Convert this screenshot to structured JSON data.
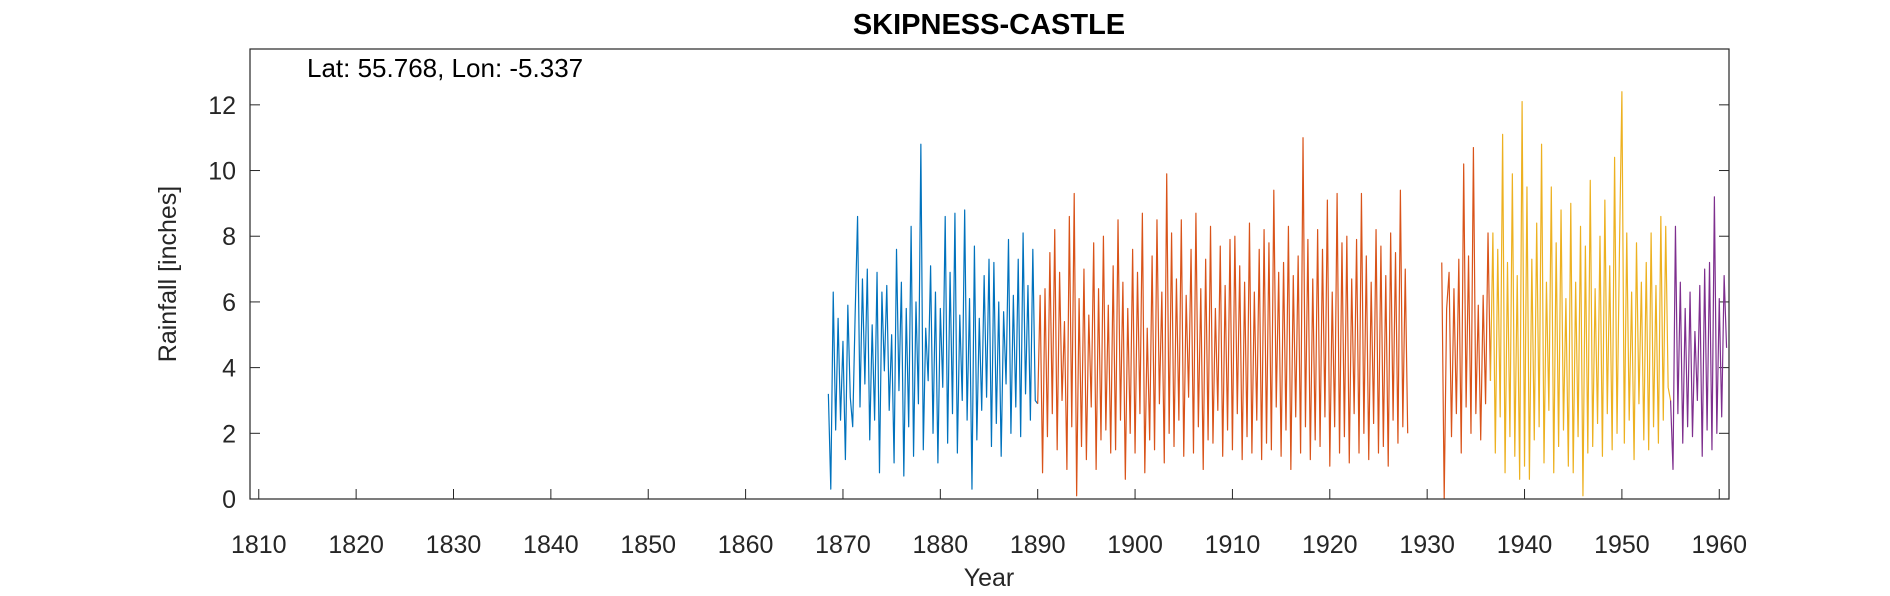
{
  "chart_data": {
    "type": "line",
    "title": "SKIPNESS-CASTLE",
    "annotation": "Lat: 55.768, Lon: -5.337",
    "x_label": "Year",
    "y_label": "Rainfall [inches]",
    "xlim": [
      1809.1,
      1961
    ],
    "xticks": [
      1810,
      1820,
      1830,
      1840,
      1850,
      1860,
      1870,
      1880,
      1890,
      1900,
      1910,
      1920,
      1930,
      1940,
      1950,
      1960
    ],
    "ylim": [
      0,
      13.7
    ],
    "yticks": [
      0,
      2,
      4,
      6,
      8,
      10,
      12
    ],
    "series": [
      {
        "color": "#0072BD",
        "x": [
          1868.5,
          1868.75,
          1869,
          1869.25,
          1869.5,
          1869.75,
          1870,
          1870.25,
          1870.5,
          1870.75,
          1871,
          1871.25,
          1871.5,
          1871.75,
          1872,
          1872.25,
          1872.5,
          1872.75,
          1873,
          1873.25,
          1873.5,
          1873.75,
          1874,
          1874.25,
          1874.5,
          1874.75,
          1875,
          1875.25,
          1875.5,
          1875.75,
          1876,
          1876.25,
          1876.5,
          1876.75,
          1877,
          1877.25,
          1877.5,
          1877.75,
          1878,
          1878.25,
          1878.5,
          1878.75,
          1879,
          1879.25,
          1879.5,
          1879.75,
          1880,
          1880.25,
          1880.5,
          1880.75,
          1881,
          1881.25,
          1881.5,
          1881.75,
          1882,
          1882.25,
          1882.5,
          1882.75,
          1883,
          1883.25,
          1883.5,
          1883.75,
          1884,
          1884.25,
          1884.5,
          1884.75,
          1885,
          1885.25,
          1885.5,
          1885.75,
          1886,
          1886.25,
          1886.5,
          1886.75,
          1887,
          1887.25,
          1887.5,
          1887.75,
          1888,
          1888.25,
          1888.5,
          1888.75,
          1889,
          1889.25,
          1889.5,
          1889.75,
          1890
        ],
        "values": [
          3.2,
          0.3,
          6.3,
          2.1,
          5.5,
          2.4,
          4.8,
          1.2,
          5.9,
          3.1,
          2.2,
          5.6,
          8.6,
          2.8,
          6.7,
          3.5,
          7.0,
          1.8,
          5.3,
          2.4,
          6.9,
          0.8,
          6.3,
          3.9,
          6.5,
          2.7,
          5.0,
          1.1,
          7.6,
          3.3,
          6.6,
          0.7,
          5.8,
          2.2,
          8.3,
          1.3,
          6.0,
          2.9,
          10.8,
          1.5,
          5.2,
          3.6,
          7.1,
          2.0,
          6.3,
          1.1,
          5.8,
          3.4,
          8.6,
          1.7,
          6.9,
          2.6,
          8.7,
          1.4,
          5.6,
          3.0,
          8.8,
          2.4,
          6.1,
          0.3,
          7.7,
          1.8,
          5.5,
          2.7,
          6.8,
          3.1,
          7.3,
          1.6,
          7.2,
          2.3,
          6.0,
          1.3,
          5.7,
          3.5,
          7.9,
          2.0,
          6.2,
          2.8,
          7.3,
          1.9,
          8.1,
          3.2,
          6.5,
          2.4,
          7.6,
          3.0,
          2.9
        ]
      },
      {
        "color": "#D95319",
        "x": [
          1890,
          1890.25,
          1890.5,
          1890.75,
          1891,
          1891.25,
          1891.5,
          1891.75,
          1892,
          1892.25,
          1892.5,
          1892.75,
          1893,
          1893.25,
          1893.5,
          1893.75,
          1894,
          1894.25,
          1894.5,
          1894.75,
          1895,
          1895.25,
          1895.5,
          1895.75,
          1896,
          1896.25,
          1896.5,
          1896.75,
          1897,
          1897.25,
          1897.5,
          1897.75,
          1898,
          1898.25,
          1898.5,
          1898.75,
          1899,
          1899.25,
          1899.5,
          1899.75,
          1900,
          1900.25,
          1900.5,
          1900.75,
          1901,
          1901.25,
          1901.5,
          1901.75,
          1902,
          1902.25,
          1902.5,
          1902.75,
          1903,
          1903.25,
          1903.5,
          1903.75,
          1904,
          1904.25,
          1904.5,
          1904.75,
          1905,
          1905.25,
          1905.5,
          1905.75,
          1906,
          1906.25,
          1906.5,
          1906.75,
          1907,
          1907.25,
          1907.5,
          1907.75,
          1908,
          1908.25,
          1908.5,
          1908.75,
          1909,
          1909.25,
          1909.5,
          1909.75,
          1910,
          1910.25,
          1910.5,
          1910.75,
          1911,
          1911.25,
          1911.5,
          1911.75,
          1912,
          1912.25,
          1912.5,
          1912.75,
          1913,
          1913.25,
          1913.5,
          1913.75,
          1914,
          1914.25,
          1914.5,
          1914.75,
          1915,
          1915.25,
          1915.5,
          1915.75,
          1916,
          1916.25,
          1916.5,
          1916.75,
          1917,
          1917.25,
          1917.5,
          1917.75,
          1918,
          1918.25,
          1918.5,
          1918.75,
          1919,
          1919.25,
          1919.5,
          1919.75,
          1920,
          1920.25,
          1920.5,
          1920.75,
          1921,
          1921.25,
          1921.5,
          1921.75,
          1922,
          1922.25,
          1922.5,
          1922.75,
          1923,
          1923.25,
          1923.5,
          1923.75,
          1924,
          1924.25,
          1924.5,
          1924.75,
          1925,
          1925.25,
          1925.5,
          1925.75,
          1926,
          1926.25,
          1926.5,
          1926.75,
          1927,
          1927.25,
          1927.5,
          1927.75,
          1928,
          1930,
          1931.5,
          1931.75,
          1932,
          1932.25,
          1932.5,
          1932.75,
          1933,
          1933.25,
          1933.5,
          1933.75,
          1934,
          1934.25,
          1934.5,
          1934.75,
          1935,
          1935.25,
          1935.5,
          1935.75,
          1936,
          1936.25,
          1936.5
        ],
        "values": [
          2.9,
          6.2,
          0.8,
          6.4,
          1.9,
          7.5,
          2.6,
          8.2,
          1.5,
          6.9,
          3.0,
          5.4,
          0.9,
          8.6,
          2.2,
          9.3,
          0.1,
          6.1,
          1.6,
          7.0,
          1.2,
          5.6,
          2.8,
          7.8,
          0.9,
          6.4,
          1.8,
          8.0,
          2.1,
          5.9,
          1.4,
          7.1,
          1.5,
          8.5,
          2.4,
          6.6,
          0.6,
          5.8,
          2.0,
          7.6,
          1.4,
          6.9,
          2.6,
          8.7,
          0.8,
          5.2,
          1.8,
          7.4,
          1.5,
          8.5,
          2.9,
          6.3,
          1.1,
          9.9,
          2.0,
          8.1,
          1.6,
          6.7,
          2.4,
          8.5,
          1.3,
          6.2,
          3.1,
          7.6,
          1.4,
          8.7,
          2.2,
          6.4,
          0.9,
          7.3,
          1.8,
          8.3,
          1.7,
          5.8,
          2.7,
          7.7,
          1.3,
          6.5,
          2.1,
          7.9,
          1.5,
          8.0,
          2.6,
          7.1,
          1.2,
          6.6,
          1.9,
          8.4,
          1.4,
          6.3,
          2.4,
          7.6,
          1.2,
          8.2,
          1.7,
          7.8,
          1.5,
          9.4,
          2.8,
          6.9,
          1.3,
          7.2,
          2.1,
          8.3,
          0.9,
          6.8,
          2.5,
          7.4,
          1.4,
          11.0,
          2.2,
          7.9,
          1.2,
          6.7,
          1.8,
          8.2,
          1.6,
          7.6,
          2.5,
          9.1,
          1.0,
          6.3,
          2.2,
          9.3,
          1.4,
          7.8,
          1.9,
          8.0,
          1.1,
          6.7,
          2.6,
          7.9,
          1.4,
          9.3,
          2.0,
          7.4,
          1.2,
          6.6,
          2.3,
          8.2,
          1.4,
          7.7,
          1.6,
          6.8,
          1.0,
          8.1,
          2.4,
          7.5,
          1.7,
          9.4,
          2.2,
          7.0,
          2.0,
          null,
          7.2,
          0.0,
          5.8,
          6.9,
          1.9,
          6.4,
          2.6,
          7.3,
          1.4,
          10.2,
          2.8,
          7.4,
          2.0,
          10.7,
          2.6,
          5.9,
          1.8,
          6.2,
          2.9,
          8.1,
          3.6
        ]
      },
      {
        "color": "#EDB120",
        "x": [
          1936.5,
          1936.75,
          1937,
          1937.25,
          1937.5,
          1937.75,
          1938,
          1938.25,
          1938.5,
          1938.75,
          1939,
          1939.25,
          1939.5,
          1939.75,
          1940,
          1940.25,
          1940.5,
          1940.75,
          1941,
          1941.25,
          1941.5,
          1941.75,
          1942,
          1942.25,
          1942.5,
          1942.75,
          1943,
          1943.25,
          1943.5,
          1943.75,
          1944,
          1944.25,
          1944.5,
          1944.75,
          1945,
          1945.25,
          1945.5,
          1945.75,
          1946,
          1946.25,
          1946.5,
          1946.75,
          1947,
          1947.25,
          1947.5,
          1947.75,
          1948,
          1948.25,
          1948.5,
          1948.75,
          1949,
          1949.25,
          1949.5,
          1949.75,
          1950,
          1950.25,
          1950.5,
          1950.75,
          1951,
          1951.25,
          1951.5,
          1951.75,
          1952,
          1952.25,
          1952.5,
          1952.75,
          1953,
          1953.25,
          1953.5,
          1953.75,
          1954,
          1954.25,
          1954.5,
          1954.75,
          1955
        ],
        "values": [
          3.6,
          8.1,
          1.4,
          7.6,
          2.5,
          11.1,
          0.8,
          7.2,
          1.9,
          9.9,
          1.3,
          6.8,
          0.6,
          12.1,
          1.0,
          9.5,
          0.6,
          7.3,
          1.8,
          8.4,
          2.2,
          10.8,
          1.1,
          6.6,
          2.7,
          9.5,
          0.8,
          7.8,
          1.6,
          8.8,
          2.1,
          6.1,
          1.0,
          9.0,
          0.8,
          6.6,
          1.9,
          8.3,
          0.1,
          7.7,
          1.4,
          9.7,
          1.6,
          6.4,
          2.3,
          8.0,
          1.3,
          9.1,
          2.6,
          7.1,
          1.5,
          10.4,
          2.0,
          7.6,
          12.4,
          1.7,
          8.1,
          2.4,
          6.3,
          1.2,
          7.8,
          2.9,
          6.6,
          1.8,
          7.2,
          1.5,
          8.1,
          2.2,
          6.5,
          1.7,
          8.6,
          2.4,
          8.3,
          3.4,
          3.0
        ]
      },
      {
        "color": "#7E2F8E",
        "x": [
          1955,
          1955.25,
          1955.5,
          1955.75,
          1956,
          1956.25,
          1956.5,
          1956.75,
          1957,
          1957.25,
          1957.5,
          1957.75,
          1958,
          1958.25,
          1958.5,
          1958.75,
          1959,
          1959.25,
          1959.5,
          1959.75,
          1960,
          1960.25,
          1960.5,
          1960.75
        ],
        "values": [
          3.0,
          0.9,
          8.3,
          2.6,
          6.6,
          1.7,
          5.8,
          2.2,
          6.3,
          1.9,
          5.1,
          3.0,
          6.5,
          1.3,
          7.0,
          2.1,
          7.2,
          1.5,
          9.2,
          2.0,
          6.1,
          2.5,
          6.8,
          4.6
        ]
      }
    ]
  }
}
